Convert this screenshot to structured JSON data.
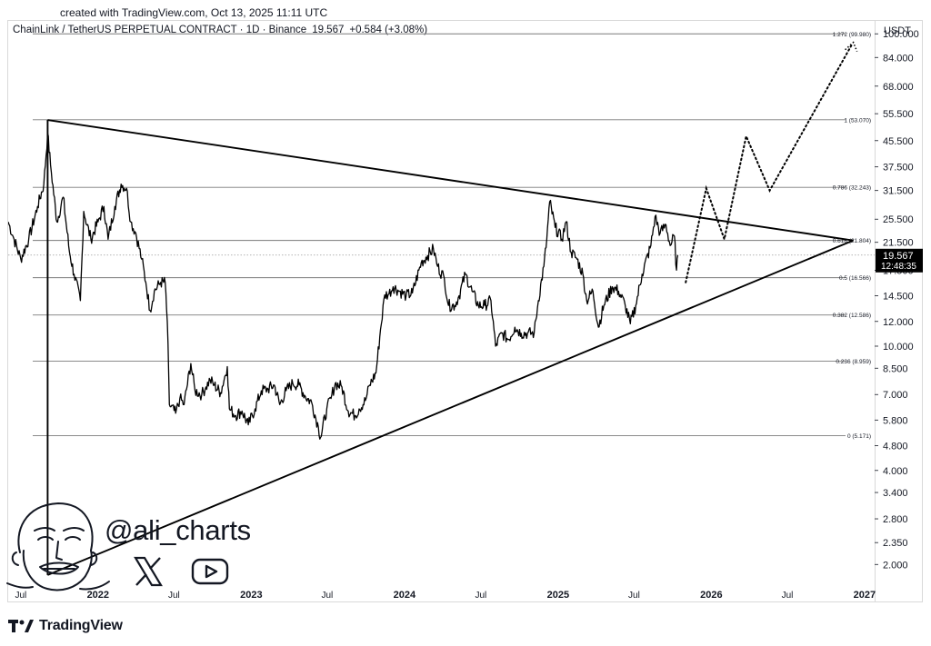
{
  "header": {
    "created_text": "created with TradingView.com, Oct 13, 2025 11:11 UTC",
    "symbol_name": "ChainLink / TetherUS PERPETUAL CONTRACT · 1D · Binance",
    "last_price": "19.567",
    "change": "+0.584 (+3.08%)",
    "currency": "USDT"
  },
  "watermark": {
    "handle": "@ali_charts",
    "x_icon": "x-logo-icon",
    "youtube_icon": "youtube-play-icon",
    "avatar": "caricature-avatar"
  },
  "footer": {
    "brand": "TradingView",
    "brand_icon": "tradingview-logo-icon"
  },
  "colors": {
    "line": "#000000",
    "fib": "#6b6b6b",
    "price_label_bg": "#000000",
    "price_label_fg": "#ffffff"
  },
  "chart_data": {
    "type": "line",
    "scale": "log",
    "ylim": [
      1.8,
      110
    ],
    "xlim": [
      "2021-06-01",
      "2027-01-25"
    ],
    "y_ticks": [
      "100.000",
      "84.000",
      "68.000",
      "55.500",
      "45.500",
      "37.500",
      "31.500",
      "25.500",
      "21.500",
      "17.500",
      "14.500",
      "12.000",
      "10.000",
      "8.500",
      "7.000",
      "5.800",
      "4.800",
      "4.000",
      "3.400",
      "2.800",
      "2.350",
      "2.000"
    ],
    "x_ticks": [
      {
        "label": "Jul",
        "date": "2021-07-01"
      },
      {
        "label": "2022",
        "date": "2022-01-01"
      },
      {
        "label": "Jul",
        "date": "2022-07-01"
      },
      {
        "label": "2023",
        "date": "2023-01-01"
      },
      {
        "label": "Jul",
        "date": "2023-07-01"
      },
      {
        "label": "2024",
        "date": "2024-01-01"
      },
      {
        "label": "Jul",
        "date": "2024-07-01"
      },
      {
        "label": "2025",
        "date": "2025-01-01"
      },
      {
        "label": "Jul",
        "date": "2025-07-01"
      },
      {
        "label": "2026",
        "date": "2026-01-01"
      },
      {
        "label": "Jul",
        "date": "2026-07-01"
      },
      {
        "label": "2027",
        "date": "2027-01-01"
      }
    ],
    "fib_levels": [
      {
        "label": "1.272 (99.980)",
        "value": 99.98
      },
      {
        "label": "1 (53.070)",
        "value": 53.07
      },
      {
        "label": "0.786 (32.243)",
        "value": 32.243
      },
      {
        "label": "0.618 (21.804)",
        "value": 21.804
      },
      {
        "label": "0.5 (16.566)",
        "value": 16.566
      },
      {
        "label": "0.382 (12.586)",
        "value": 12.586
      },
      {
        "label": "0.236 (8.959)",
        "value": 8.959
      },
      {
        "label": "0 (5.171)",
        "value": 5.171
      }
    ],
    "current_price": {
      "value": 19.567,
      "label": "19.567",
      "countdown": "12:48:35"
    },
    "price_series": [
      [
        "2021-06-01",
        25
      ],
      [
        "2021-06-15",
        22
      ],
      [
        "2021-07-01",
        19
      ],
      [
        "2021-07-20",
        22
      ],
      [
        "2021-08-10",
        28
      ],
      [
        "2021-08-25",
        33
      ],
      [
        "2021-09-03",
        48
      ],
      [
        "2021-09-10",
        38
      ],
      [
        "2021-09-25",
        25
      ],
      [
        "2021-10-10",
        30
      ],
      [
        "2021-10-25",
        20
      ],
      [
        "2021-11-05",
        17
      ],
      [
        "2021-11-20",
        14
      ],
      [
        "2021-11-28",
        27
      ],
      [
        "2021-12-15",
        22
      ],
      [
        "2022-01-01",
        25
      ],
      [
        "2022-01-15",
        28
      ],
      [
        "2022-01-25",
        22
      ],
      [
        "2022-02-10",
        28
      ],
      [
        "2022-02-25",
        33
      ],
      [
        "2022-03-10",
        32
      ],
      [
        "2022-03-20",
        25
      ],
      [
        "2022-04-01",
        23
      ],
      [
        "2022-04-15",
        19
      ],
      [
        "2022-04-25",
        16
      ],
      [
        "2022-05-05",
        13
      ],
      [
        "2022-05-15",
        15
      ],
      [
        "2022-05-30",
        16
      ],
      [
        "2022-06-10",
        16
      ],
      [
        "2022-06-15",
        12
      ],
      [
        "2022-06-20",
        6.5
      ],
      [
        "2022-07-05",
        6.1
      ],
      [
        "2022-07-15",
        6.8
      ],
      [
        "2022-07-25",
        6.5
      ],
      [
        "2022-08-10",
        8.8
      ],
      [
        "2022-08-20",
        7.2
      ],
      [
        "2022-09-05",
        7.0
      ],
      [
        "2022-09-15",
        7.4
      ],
      [
        "2022-09-25",
        7.8
      ],
      [
        "2022-10-05",
        7.5
      ],
      [
        "2022-10-20",
        7.1
      ],
      [
        "2022-11-05",
        8.6
      ],
      [
        "2022-11-10",
        6.3
      ],
      [
        "2022-11-25",
        6.0
      ],
      [
        "2022-12-10",
        6.2
      ],
      [
        "2022-12-25",
        5.6
      ],
      [
        "2023-01-10",
        6.3
      ],
      [
        "2023-01-25",
        7.2
      ],
      [
        "2023-02-10",
        7.3
      ],
      [
        "2023-02-25",
        7.5
      ],
      [
        "2023-03-10",
        6.5
      ],
      [
        "2023-03-25",
        7.2
      ],
      [
        "2023-04-10",
        7.6
      ],
      [
        "2023-04-25",
        7.5
      ],
      [
        "2023-05-10",
        6.9
      ],
      [
        "2023-05-25",
        6.6
      ],
      [
        "2023-06-10",
        5.5
      ],
      [
        "2023-06-15",
        5.1
      ],
      [
        "2023-06-30",
        6.3
      ],
      [
        "2023-07-10",
        6.8
      ],
      [
        "2023-07-20",
        7.6
      ],
      [
        "2023-08-05",
        7.4
      ],
      [
        "2023-08-20",
        6.2
      ],
      [
        "2023-09-05",
        6.0
      ],
      [
        "2023-09-15",
        6.3
      ],
      [
        "2023-09-30",
        6.7
      ],
      [
        "2023-10-10",
        7.5
      ],
      [
        "2023-10-25",
        8.2
      ],
      [
        "2023-11-05",
        11.3
      ],
      [
        "2023-11-15",
        14.6
      ],
      [
        "2023-11-25",
        14.7
      ],
      [
        "2023-12-05",
        15.5
      ],
      [
        "2023-12-20",
        15.0
      ],
      [
        "2024-01-05",
        14.5
      ],
      [
        "2024-01-20",
        14.8
      ],
      [
        "2024-02-10",
        18.5
      ],
      [
        "2024-02-25",
        19.5
      ],
      [
        "2024-03-10",
        20.5
      ],
      [
        "2024-03-20",
        18.0
      ],
      [
        "2024-04-05",
        16.5
      ],
      [
        "2024-04-15",
        13.5
      ],
      [
        "2024-04-30",
        13.5
      ],
      [
        "2024-05-10",
        14.5
      ],
      [
        "2024-05-25",
        17.0
      ],
      [
        "2024-06-10",
        15.0
      ],
      [
        "2024-06-25",
        13.5
      ],
      [
        "2024-07-10",
        13.5
      ],
      [
        "2024-07-25",
        14.0
      ],
      [
        "2024-08-05",
        10.0
      ],
      [
        "2024-08-20",
        11.0
      ],
      [
        "2024-09-05",
        10.5
      ],
      [
        "2024-09-20",
        11.5
      ],
      [
        "2024-10-05",
        11.0
      ],
      [
        "2024-10-20",
        11.0
      ],
      [
        "2024-11-05",
        11.0
      ],
      [
        "2024-11-15",
        14.0
      ],
      [
        "2024-11-28",
        18.0
      ],
      [
        "2024-12-05",
        22.0
      ],
      [
        "2024-12-12",
        29.0
      ],
      [
        "2024-12-25",
        24.0
      ],
      [
        "2025-01-10",
        22.0
      ],
      [
        "2025-01-20",
        25.0
      ],
      [
        "2025-02-01",
        20.0
      ],
      [
        "2025-02-15",
        19.0
      ],
      [
        "2025-03-01",
        17.0
      ],
      [
        "2025-03-10",
        14.0
      ],
      [
        "2025-03-25",
        15.0
      ],
      [
        "2025-04-07",
        11.5
      ],
      [
        "2025-04-20",
        13.5
      ],
      [
        "2025-05-10",
        15.5
      ],
      [
        "2025-05-25",
        15.0
      ],
      [
        "2025-06-10",
        13.5
      ],
      [
        "2025-06-22",
        11.8
      ],
      [
        "2025-07-05",
        13.5
      ],
      [
        "2025-07-20",
        17.0
      ],
      [
        "2025-08-10",
        21.0
      ],
      [
        "2025-08-20",
        26.0
      ],
      [
        "2025-09-01",
        23.0
      ],
      [
        "2025-09-15",
        24.5
      ],
      [
        "2025-09-25",
        21.0
      ],
      [
        "2025-10-05",
        22.5
      ],
      [
        "2025-10-10",
        17.5
      ],
      [
        "2025-10-13",
        19.567
      ]
    ],
    "projection": [
      [
        "2025-11-01",
        16.0
      ],
      [
        "2025-12-20",
        32.0
      ],
      [
        "2026-02-01",
        22.0
      ],
      [
        "2026-03-25",
        47.0
      ],
      [
        "2026-05-20",
        31.5
      ],
      [
        "2026-12-01",
        92.0
      ]
    ],
    "triangle": {
      "upper": [
        [
          "2021-09-03",
          53.0
        ],
        [
          "2026-12-05",
          21.8
        ]
      ],
      "lower": [
        [
          "2021-09-03",
          1.85
        ],
        [
          "2026-12-05",
          21.8
        ]
      ],
      "vertical_left": [
        [
          "2021-09-03",
          53.0
        ],
        [
          "2021-09-03",
          1.85
        ]
      ]
    }
  }
}
